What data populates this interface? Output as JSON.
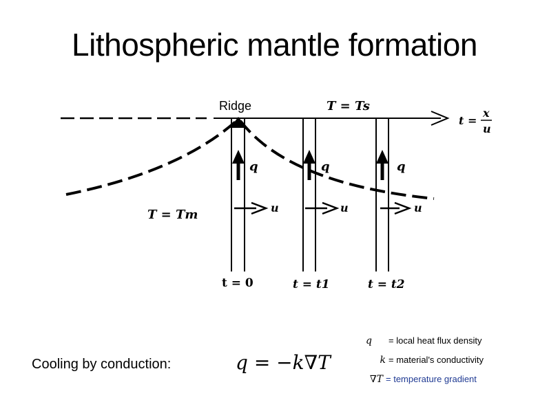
{
  "slide": {
    "title": "Lithospheric mantle formation"
  },
  "diagram": {
    "ridge_label": "Ridge",
    "surface_temp": "T = Ts",
    "mantle_temp": "T = Tm",
    "time_formula_t": "t =",
    "time_formula_num": "x",
    "time_formula_den": "u",
    "heat_flux_label": "q",
    "velocity_label": "u",
    "time_labels": [
      "t = 0",
      "t = t1",
      "t = t2"
    ]
  },
  "footer": {
    "cooling_label": "Cooling by conduction:",
    "formula": "q = −k∇T",
    "legend": [
      {
        "symbol": "q",
        "description": "= local heat flux density",
        "color": "#000000"
      },
      {
        "symbol": "k",
        "description": "= material's conductivity",
        "color": "#000000"
      },
      {
        "symbol": "∇T",
        "description": "= temperature gradient",
        "color": "#1f3a93"
      }
    ]
  }
}
